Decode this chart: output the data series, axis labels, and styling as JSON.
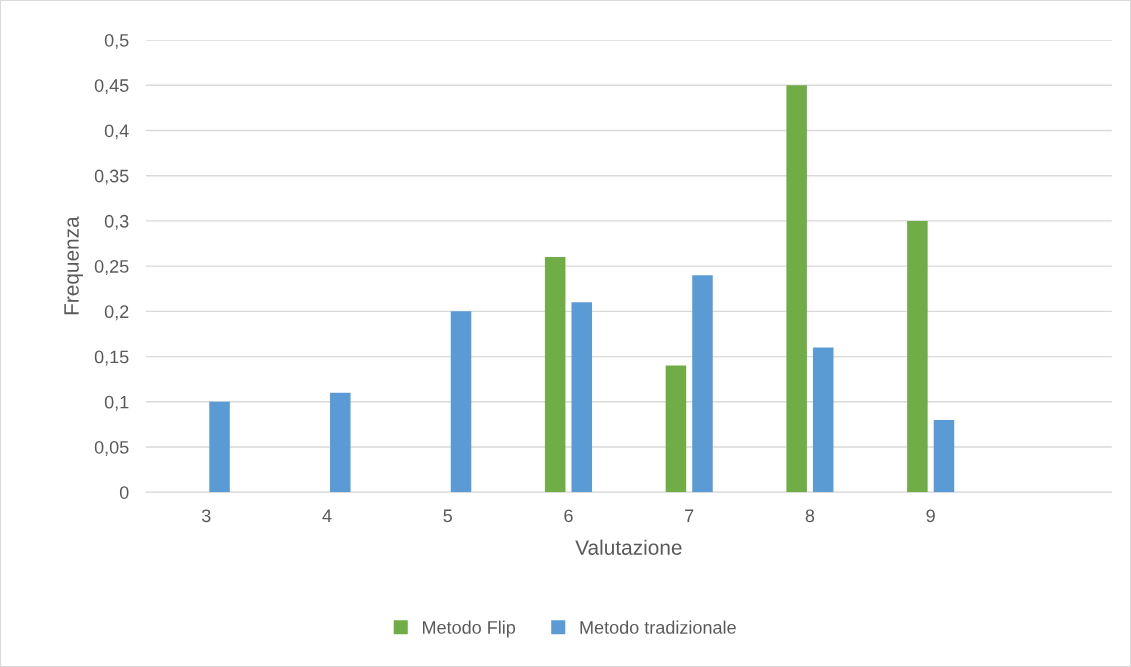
{
  "chart_data": {
    "type": "bar",
    "xlabel": "Valutazione",
    "ylabel": "Frequenza",
    "categories": [
      "3",
      "4",
      "5",
      "6",
      "7",
      "8",
      "9",
      null
    ],
    "series": [
      {
        "name": "Metodo Flip",
        "color": "#70ad47",
        "values": [
          null,
          null,
          null,
          0.26,
          0.14,
          0.45,
          0.3,
          null
        ]
      },
      {
        "name": "Metodo tradizionale",
        "color": "#5b9bd5",
        "values": [
          0.1,
          0.11,
          0.2,
          0.21,
          0.24,
          0.16,
          0.08,
          null
        ]
      }
    ],
    "ylim": [
      0,
      0.5
    ],
    "yticks": [
      0,
      {
        "value": 0.05,
        "label": "0,05"
      },
      {
        "value": 0.1,
        "label": "0,1"
      },
      {
        "value": 0.15,
        "label": "0,15"
      },
      {
        "value": 0.2,
        "label": "0,2"
      },
      {
        "value": 0.25,
        "label": "0,25"
      },
      {
        "value": 0.3,
        "label": "0,3"
      },
      {
        "value": 0.35,
        "label": "0,35"
      },
      {
        "value": 0.4,
        "label": "0,4"
      },
      {
        "value": 0.45,
        "label": "0,45"
      },
      {
        "value": 0.5,
        "label": "0,5"
      }
    ],
    "grid": "y",
    "legend": "bottom"
  }
}
